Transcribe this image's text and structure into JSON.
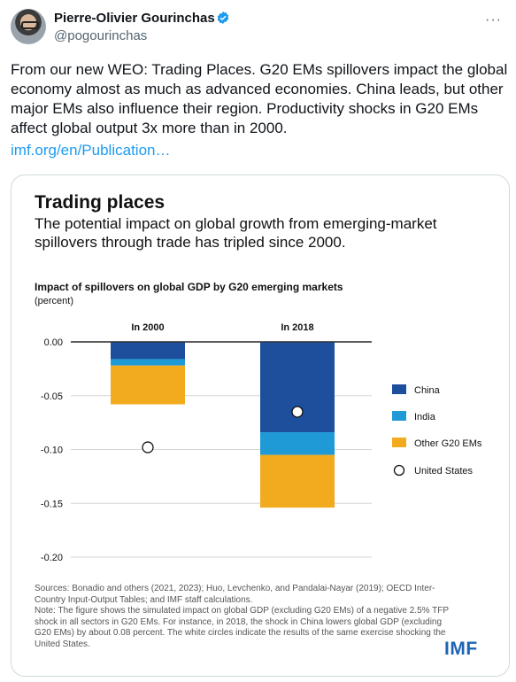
{
  "tweet": {
    "author_name": "Pierre-Olivier Gourinchas",
    "handle": "@pogourinchas",
    "text": "From our new WEO: Trading Places. G20 EMs spillovers impact the global economy almost as much as advanced economies. China leads, but other major EMs also influence their region. Productivity shocks in G20 EMs affect global output 3x more than in 2000.",
    "link_text": "imf.org/en/Publication…",
    "more_icon": "···",
    "link_color": "#1d9bf0"
  },
  "card": {
    "brand": "IMF",
    "brand_color": "#1e64b4",
    "sources_text": "Sources: Bonadio and others (2021, 2023); Huo, Levchenko, and Pandalai-Nayar (2019); OECD Inter-Country Input-Output Tables; and IMF staff calculations.\nNote: The figure shows the simulated impact on global GDP (excluding G20 EMs) of a negative 2.5% TFP shock in all sectors in G20 EMs. For instance, in 2018, the shock in China lowers global GDP (excluding G20 EMs) by about 0.08 percent. The white circles indicate the results of the same exercise shocking the United States."
  },
  "chart_data": {
    "type": "bar",
    "stacked": true,
    "title": "Trading places",
    "subtitle": "The potential impact on global growth from emerging-market spillovers through trade has tripled since 2000.",
    "panel_title": "Impact of spillovers on global GDP by G20 emerging markets",
    "unit": "(percent)",
    "categories": [
      "In 2000",
      "In 2018"
    ],
    "ylim": [
      -0.2,
      0
    ],
    "yticks": [
      0.0,
      -0.05,
      -0.1,
      -0.15,
      -0.2
    ],
    "ytick_labels": [
      "0.00",
      "-0.05",
      "-0.10",
      "-0.15",
      "-0.20"
    ],
    "grid": true,
    "legend_position": "right",
    "series": [
      {
        "name": "China",
        "values": [
          -0.016,
          -0.084
        ],
        "color": "#1d4f9c"
      },
      {
        "name": "India",
        "values": [
          -0.006,
          -0.021
        ],
        "color": "#1f9ad6"
      },
      {
        "name": "Other G20 EMs",
        "values": [
          -0.036,
          -0.049
        ],
        "color": "#f2ab1f"
      }
    ],
    "markers": {
      "name": "United States",
      "values": [
        -0.098,
        -0.065
      ],
      "style": "white circle"
    }
  }
}
